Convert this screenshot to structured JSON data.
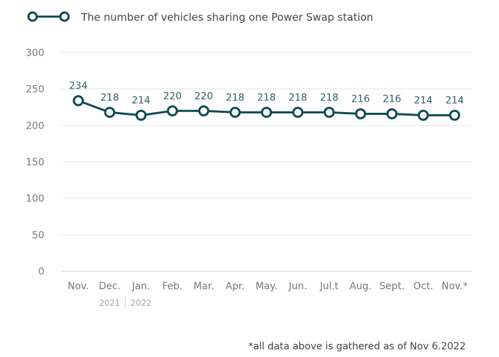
{
  "colors": {
    "series": "#0d4a52",
    "grid": "#e4e4e4",
    "tick_text": "#777777",
    "year_text": "#a6a6a6",
    "value_text": "#2f5e63"
  },
  "legend": {
    "label": "The number of vehicles sharing one Power Swap station"
  },
  "footnote": "*all data above is gathered as of Nov 6.2022",
  "chart_data": {
    "type": "line",
    "title": "",
    "xlabel": "",
    "ylabel": "",
    "ylim": [
      0,
      300
    ],
    "yticks": [
      0,
      50,
      100,
      150,
      200,
      250,
      300
    ],
    "categories": [
      "Nov.",
      "Dec.",
      "Jan.",
      "Feb.",
      "Mar.",
      "Apr.",
      "May.",
      "Jun.",
      "Jul.t",
      "Aug.",
      "Sept.",
      "Oct.",
      "Nov.*"
    ],
    "year_labels": [
      {
        "category": "Dec.",
        "label": "2021"
      },
      {
        "category": "Jan.",
        "label": "2022"
      }
    ],
    "series": [
      {
        "name": "The number of vehicles sharing one Power Swap station",
        "values": [
          234,
          218,
          214,
          220,
          220,
          218,
          218,
          218,
          218,
          216,
          216,
          214,
          214
        ],
        "labels": [
          "234",
          "218",
          "214",
          "220",
          "220",
          "218",
          "218",
          "218",
          "218",
          "216",
          "216",
          "214",
          "214"
        ]
      }
    ],
    "grid": true,
    "legend_position": "top-left"
  }
}
